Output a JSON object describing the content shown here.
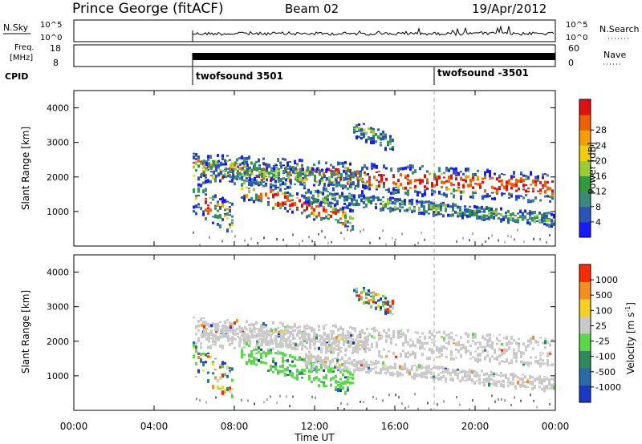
{
  "header": {
    "station": "Prince George (fitACF)",
    "beam": "Beam 02",
    "date": "19/Apr/2012"
  },
  "strip_panels": {
    "nsky": {
      "label": "N.Sky",
      "ticks": [
        "10^5",
        "10^0"
      ],
      "right_label": "N.Search",
      "right_ticks": [
        "10^5",
        "10^0"
      ]
    },
    "freq": {
      "label_lines": [
        "Freq.",
        "[MHz]"
      ],
      "ticks": [
        "18",
        "8"
      ],
      "right_label": "Nave",
      "right_ticks": [
        "60",
        "0"
      ]
    },
    "cpid": {
      "label": "CPID",
      "programs": [
        {
          "name": "twofsound 3501",
          "start": "06:00"
        },
        {
          "name": "twofsound -3501",
          "start": "18:00"
        }
      ]
    }
  },
  "chart_data": [
    {
      "type": "heatmap",
      "name": "power-panel",
      "ylabel": "Slant Range [km]",
      "yticks": [
        1000,
        2000,
        3000,
        4000
      ],
      "ylim": [
        0,
        4500
      ],
      "colorbar": {
        "label": "Power [dB]",
        "ticks": [
          "4",
          "8",
          "12",
          "16",
          "20",
          "24",
          "28"
        ],
        "colors": [
          "#1a1aff",
          "#2a55b8",
          "#3a8a78",
          "#2f9a3a",
          "#9acd32",
          "#f0d000",
          "#f5a000",
          "#f06000",
          "#e01010"
        ]
      }
    },
    {
      "type": "heatmap",
      "name": "velocity-panel",
      "ylabel": "Slant Range [km]",
      "yticks": [
        1000,
        2000,
        3000,
        4000
      ],
      "ylim": [
        0,
        4500
      ],
      "colorbar": {
        "label": "Velocity [m s^-1]",
        "ticks": [
          "1000",
          "500",
          "100",
          "25",
          "-25",
          "-100",
          "-500",
          "-1000"
        ],
        "colors": [
          "#1b38c8",
          "#2a6aa8",
          "#2e8a5a",
          "#5ad84a",
          "#c9c9c9",
          "#f5d020",
          "#f59020",
          "#ff2a00"
        ]
      }
    }
  ],
  "xaxis": {
    "label": "Time UT",
    "ticks": [
      "00:00",
      "04:00",
      "08:00",
      "12:00",
      "16:00",
      "20:00",
      "00:00"
    ]
  }
}
